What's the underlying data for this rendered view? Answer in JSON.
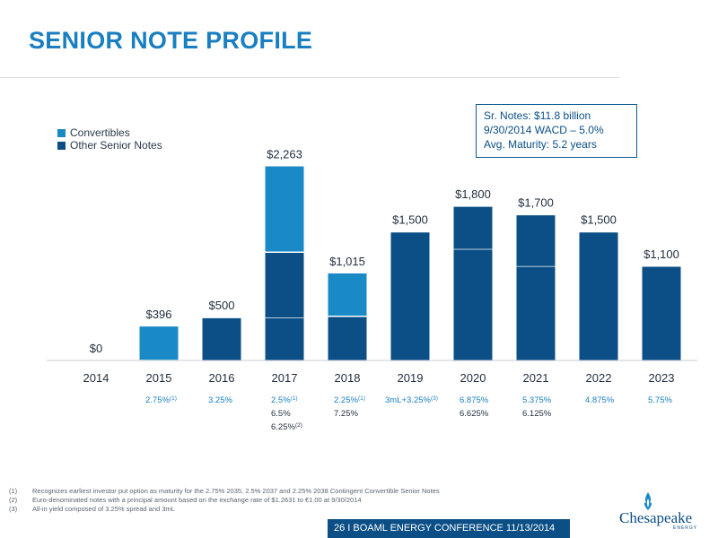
{
  "title": "SENIOR NOTE PROFILE",
  "infobox": {
    "line1": "Sr. Notes: $11.8 billion",
    "line2": "9/30/2014 WACD – 5.0%",
    "line3": "Avg. Maturity: 5.2 years"
  },
  "colors": {
    "convertibles": "#1a8ac6",
    "other": "#0b4f86",
    "title": "#1a7fc1"
  },
  "chart_data": {
    "type": "bar",
    "stacked": true,
    "categories": [
      "2014",
      "2015",
      "2016",
      "2017",
      "2018",
      "2019",
      "2020",
      "2021",
      "2022",
      "2023"
    ],
    "series": [
      {
        "name": "Convertibles",
        "values": [
          0,
          396,
          0,
          1000,
          500,
          0,
          0,
          0,
          0,
          0
        ]
      },
      {
        "name": "Other Senior Notes",
        "values": [
          0,
          0,
          500,
          1263,
          515,
          1500,
          1800,
          1700,
          1500,
          1100
        ]
      }
    ],
    "other_notes_segments": [
      [],
      [],
      [
        500
      ],
      [
        500,
        763
      ],
      [
        515
      ],
      [
        1500
      ],
      [
        1300,
        500
      ],
      [
        1100,
        600
      ],
      [
        1500
      ],
      [
        1100
      ]
    ],
    "totals": [
      "$0",
      "$396",
      "$500",
      "$2,263",
      "$1,015",
      "$1,500",
      "$1,800",
      "$1,700",
      "$1,500",
      "$1,100"
    ],
    "coupons": [
      [],
      [
        {
          "t": "2.75%",
          "sup": "(1)"
        }
      ],
      [
        {
          "t": "3.25%",
          "sup": ""
        }
      ],
      [
        {
          "t": "2.5%",
          "sup": "(1)"
        },
        {
          "t": "6.5%",
          "sup": ""
        },
        {
          "t": "6.25%",
          "sup": "(2)"
        }
      ],
      [
        {
          "t": "2.25%",
          "sup": "(1)"
        },
        {
          "t": "7.25%",
          "sup": ""
        }
      ],
      [
        {
          "t": "3mL+3.25%",
          "sup": "(3)"
        }
      ],
      [
        {
          "t": "6.875%",
          "sup": ""
        },
        {
          "t": "6.625%",
          "sup": ""
        }
      ],
      [
        {
          "t": "5.375%",
          "sup": ""
        },
        {
          "t": "6.125%",
          "sup": ""
        }
      ],
      [
        {
          "t": "4.875%",
          "sup": ""
        }
      ],
      [
        {
          "t": "5.75%",
          "sup": ""
        }
      ]
    ],
    "ylim": [
      0,
      2300
    ],
    "legend_position": "top-left"
  },
  "footnotes": [
    {
      "mark": "(1)",
      "text": "Recognizes earliest investor put option as maturity for the 2.75% 2035, 2.5% 2037 and 2.25% 2038 Contingent Convertible Senior Notes"
    },
    {
      "mark": "(2)",
      "text": "Euro-denominated notes with a principal amount based on the exchange rate of $1.2631 to €1.00 at 9/30/2014"
    },
    {
      "mark": "(3)",
      "text": "All-in yield composed of 3.25% spread and 3mL"
    }
  ],
  "footer": "26   I   BOAML ENERGY CONFERENCE  11/13/2014",
  "logo": {
    "name": "Chesapeake",
    "sub": "ENERGY"
  }
}
